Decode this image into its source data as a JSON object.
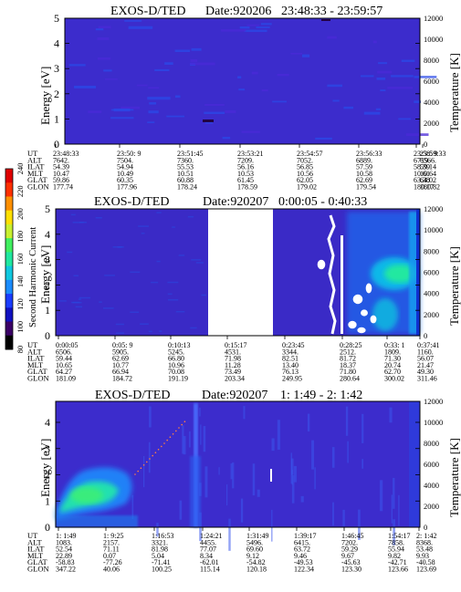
{
  "colorbar": {
    "label": "Second Harmonic Current",
    "ticks": [
      "80",
      "100",
      "120",
      "140",
      "160",
      "180",
      "200",
      "220",
      "240"
    ],
    "colors": [
      "#000000",
      "#3a0066",
      "#1010c0",
      "#1a3cff",
      "#1a8cff",
      "#10c8e0",
      "#20e8a0",
      "#40f060",
      "#c8f030",
      "#ffe000",
      "#ff9000",
      "#ff3000",
      "#e00000"
    ]
  },
  "panels": [
    {
      "title": "EXOS-D/TED",
      "date": "Date:920206",
      "range": "23:48:33 - 23:59:57",
      "ylabel": "Energy [eV]",
      "y2label": "Temperature [K]",
      "yticks": [
        "0",
        "1",
        "2",
        "3",
        "4",
        "5"
      ],
      "y2ticks": [
        "0",
        "2000",
        "4000",
        "6000",
        "8000",
        "10000",
        "12000"
      ],
      "row_labels": [
        "UT",
        "ALT",
        "ILAT",
        "MLT",
        "GLAT",
        "GLON"
      ],
      "columns": [
        [
          "23:48:33",
          "7642.",
          "54.39",
          "10.47",
          "59.86",
          "177.74"
        ],
        [
          "23:50: 9",
          "7504.",
          "54.94",
          "10.49",
          "60.35",
          "177.96"
        ],
        [
          "23:51:45",
          "7360.",
          "55.53",
          "10.51",
          "60.88",
          "178.24"
        ],
        [
          "23:53:21",
          "7209.",
          "56.16",
          "10.53",
          "61.45",
          "178.59"
        ],
        [
          "23:54:57",
          "7052.",
          "56.85",
          "10.56",
          "62.05",
          "179.02"
        ],
        [
          "23:56:33",
          "6889.",
          "57.59",
          "10.58",
          "62.69",
          "179.54"
        ],
        [
          "23:58: 9",
          "6719.",
          "58.39",
          "10.61",
          "63.38",
          "180.17"
        ],
        [
          "23:59:33",
          "6566.",
          "59.14",
          "10.64",
          "64.02",
          "180.82"
        ]
      ]
    },
    {
      "title": "EXOS-D/TED",
      "date": "Date:920207",
      "range": "0:00:05 - 0:40:33",
      "ylabel": "Energy [eV]",
      "y2label": "Temperature [K]",
      "yticks": [
        "0",
        "1",
        "2",
        "3",
        "4",
        "5"
      ],
      "y2ticks": [
        "0",
        "2000",
        "4000",
        "6000",
        "8000",
        "10000",
        "12000"
      ],
      "row_labels": [
        "UT",
        "ALT",
        "ILAT",
        "MLT",
        "GLAT",
        "GLON"
      ],
      "columns": [
        [
          "0:00:05",
          "6506.",
          "59.44",
          "10.65",
          "64.27",
          "181.09"
        ],
        [
          "0:05: 9",
          "5905.",
          "62.69",
          "10.77",
          "66.94",
          "184.72"
        ],
        [
          "0:10:13",
          "5245.",
          "66.80",
          "10.96",
          "70.08",
          "191.19"
        ],
        [
          "0:15:17",
          "4531.",
          "71.98",
          "11.28",
          "73.49",
          "203.34"
        ],
        [
          "0:23:45",
          "3344.",
          "82.51",
          "13.40",
          "76.13",
          "249.95"
        ],
        [
          "0:28:25",
          "2512.",
          "81.72",
          "18.37",
          "71.80",
          "280.64"
        ],
        [
          "0:33: 1",
          "1809.",
          "71.30",
          "20.74",
          "62.70",
          "300.02"
        ],
        [
          "0:37:41",
          "1160.",
          "56.07",
          "21.47",
          "49.30",
          "311.46"
        ]
      ]
    },
    {
      "title": "EXOS-D/TED",
      "date": "Date:920207",
      "range": "1: 1:49 - 2: 1:42",
      "ylabel": "Energy [eV]",
      "y2label": "Temperature [K]",
      "yticks": [
        "0",
        "1",
        "2",
        "3",
        "4"
      ],
      "y2ticks": [
        "0",
        "2000",
        "4000",
        "6000",
        "8000",
        "10000",
        "12000"
      ],
      "row_labels": [
        "UT",
        "ALT",
        "ILAT",
        "MLT",
        "GLAT",
        "GLON"
      ],
      "columns": [
        [
          "1: 1:49",
          "1083.",
          "52.54",
          "22.89",
          "-58.83",
          "347.22"
        ],
        [
          "1: 9:25",
          "2157.",
          "71.11",
          "0.07",
          "-77.26",
          "40.06"
        ],
        [
          "1:16:53",
          "3321.",
          "81.98",
          "5.04",
          "-71.41",
          "100.25"
        ],
        [
          "1:24:21",
          "4455.",
          "77.07",
          "8.34",
          "-62.01",
          "115.14"
        ],
        [
          "1:31:49",
          "5496.",
          "69.60",
          "9.12",
          "-54.82",
          "120.18"
        ],
        [
          "1:39:17",
          "6415.",
          "63.72",
          "9.46",
          "-49.53",
          "122.34"
        ],
        [
          "1:46:45",
          "7202.",
          "59.29",
          "9.67",
          "-45.63",
          "123.30"
        ],
        [
          "1:54:17",
          "7858.",
          "55.94",
          "9.82",
          "-42.71",
          "123.66"
        ],
        [
          "2: 1:42",
          "8368.",
          "53.48",
          "9.93",
          "-40.58",
          "123.69"
        ]
      ]
    }
  ],
  "chart_data": [
    {
      "type": "heatmap",
      "title": "EXOS-D/TED Date:920206 23:48:33 - 23:59:57",
      "ylabel": "Energy [eV]",
      "y2label": "Temperature [K]",
      "ylim": [
        0,
        5
      ],
      "y2lim": [
        0,
        12000
      ],
      "x": [
        "23:48:33",
        "23:50: 9",
        "23:51:45",
        "23:53:21",
        "23:54:57",
        "23:56:33",
        "23:58: 9",
        "23:59:33"
      ],
      "colorbar_range": [
        80,
        240
      ]
    },
    {
      "type": "heatmap",
      "title": "EXOS-D/TED Date:920207 0:00:05 - 0:40:33",
      "ylabel": "Energy [eV]",
      "y2label": "Temperature [K]",
      "ylim": [
        0,
        5
      ],
      "y2lim": [
        0,
        12000
      ],
      "x": [
        "0:00:05",
        "0:05: 9",
        "0:10:13",
        "0:15:17",
        "0:23:45",
        "0:28:25",
        "0:33: 1",
        "0:37:41"
      ],
      "data_gap": [
        "0:15:17",
        "0:23:45"
      ],
      "colorbar_range": [
        80,
        240
      ]
    },
    {
      "type": "heatmap",
      "title": "EXOS-D/TED Date:920207 1: 1:49 - 2: 1:42",
      "ylabel": "Energy [eV]",
      "y2label": "Temperature [K]",
      "ylim": [
        0,
        5
      ],
      "y2lim": [
        0,
        12000
      ],
      "x": [
        "1: 1:49",
        "1: 9:25",
        "1:16:53",
        "1:24:21",
        "1:31:49",
        "1:39:17",
        "1:46:45",
        "1:54:17",
        "2: 1:42"
      ],
      "colorbar_range": [
        80,
        240
      ]
    }
  ]
}
